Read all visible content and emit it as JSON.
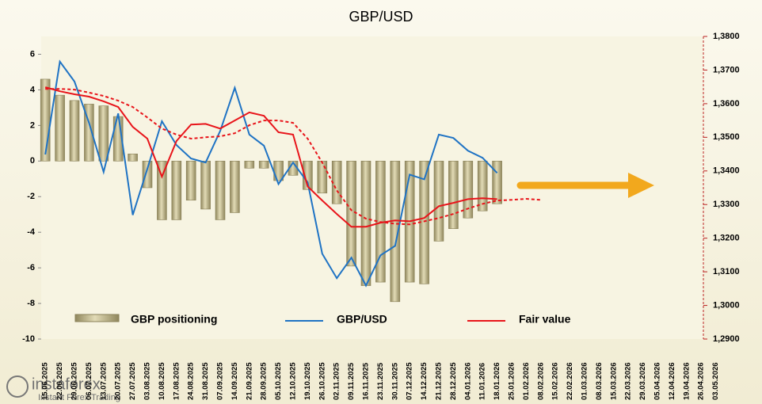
{
  "chart_data": {
    "type": "bar-line",
    "title": "GBP/USD",
    "categories": [
      "15.06.2025",
      "22.06.2025",
      "29.06.2025",
      "06.07.2025",
      "13.07.2025",
      "20.07.2025",
      "27.07.2025",
      "03.08.2025",
      "10.08.2025",
      "17.08.2025",
      "24.08.2025",
      "31.08.2025",
      "07.09.2025",
      "14.09.2025",
      "21.09.2025",
      "28.09.2025",
      "05.10.2025",
      "12.10.2025",
      "19.10.2025",
      "26.10.2025",
      "02.11.2025",
      "09.11.2025",
      "16.11.2025",
      "23.11.2025",
      "30.11.2025",
      "07.12.2025",
      "14.12.2025",
      "21.12.2025",
      "28.12.2025",
      "04.01.2026",
      "11.01.2026",
      "18.01.2026",
      "25.01.2026",
      "01.02.2026",
      "08.02.2026",
      "15.02.2026",
      "22.02.2026",
      "01.03.2026",
      "08.03.2026",
      "15.03.2026",
      "22.03.2026",
      "29.03.2026",
      "05.04.2026",
      "12.04.2026",
      "19.04.2026",
      "26.04.2026",
      "03.05.2026"
    ],
    "series": [
      {
        "name": "GBP positioning",
        "kind": "bar",
        "axis": "y",
        "color": "#c9bf8e",
        "values": [
          4.6,
          3.7,
          3.4,
          3.2,
          3.1,
          2.5,
          0.4,
          -1.5,
          -3.3,
          -3.3,
          -2.2,
          -2.7,
          -3.3,
          -2.9,
          -0.4,
          -0.4,
          -1.1,
          -0.8,
          -1.6,
          -1.8,
          -2.4,
          -5.9,
          -7.0,
          -6.8,
          -7.9,
          -6.8,
          -6.9,
          -4.5,
          -3.8,
          -3.2,
          -2.8,
          -2.4,
          null,
          null,
          null,
          null,
          null,
          null,
          null,
          null,
          null,
          null,
          null,
          null,
          null,
          null,
          null
        ]
      },
      {
        "name": "GBP/USD",
        "kind": "line",
        "axis": "y2",
        "color": "#1f73c4",
        "values": [
          1.3449,
          1.3725,
          1.3666,
          1.3543,
          1.3397,
          1.3571,
          1.3269,
          1.3406,
          1.3548,
          1.3477,
          1.3437,
          1.3425,
          1.3519,
          1.3647,
          1.3508,
          1.3475,
          1.3361,
          1.3425,
          1.3366,
          1.3154,
          1.3081,
          1.3142,
          1.3059,
          1.3149,
          1.3177,
          1.3389,
          1.3375,
          1.3508,
          1.3498,
          1.346,
          1.3439,
          1.3394,
          null,
          null,
          null,
          null,
          null,
          null,
          null,
          null,
          null,
          null,
          null,
          null,
          null,
          null,
          null
        ]
      },
      {
        "name": "Fair value",
        "kind": "line",
        "axis": "y2",
        "color": "#e8141a",
        "values": [
          1.3649,
          1.3637,
          1.3628,
          1.3621,
          1.3607,
          1.359,
          1.3531,
          1.3496,
          1.3383,
          1.3489,
          1.3538,
          1.354,
          1.3526,
          1.355,
          1.3574,
          1.3564,
          1.3515,
          1.3508,
          1.3354,
          1.3312,
          1.3272,
          1.3234,
          1.3234,
          1.3246,
          1.3253,
          1.325,
          1.326,
          1.3295,
          1.3305,
          1.3316,
          1.3319,
          1.3316,
          null,
          null,
          null,
          null,
          null,
          null,
          null,
          null,
          null,
          null,
          null,
          null,
          null,
          null,
          null
        ]
      },
      {
        "kind": "dashed",
        "axis": "y2",
        "color": "#e8141a",
        "values": [
          1.3644,
          1.3644,
          1.3642,
          1.3633,
          1.3623,
          1.3609,
          1.359,
          1.3559,
          1.3526,
          1.3508,
          1.3496,
          1.35,
          1.3503,
          1.3512,
          1.3536,
          1.355,
          1.355,
          1.3543,
          1.3496,
          1.3425,
          1.3342,
          1.3283,
          1.3258,
          1.3248,
          1.3243,
          1.3241,
          1.325,
          1.326,
          1.3272,
          1.3288,
          1.3302,
          1.3312,
          1.3314,
          1.3317,
          1.3314,
          null,
          null,
          null,
          null,
          null,
          null,
          null,
          null,
          null,
          null,
          null,
          null
        ]
      }
    ],
    "ylim": [
      -10,
      7
    ],
    "yticks": [
      -10,
      -8,
      -6,
      -4,
      -2,
      0,
      2,
      4,
      6
    ],
    "y2lim": [
      1.29,
      1.38
    ],
    "y2ticks": [
      {
        "value": 1.29,
        "label": "1,2900"
      },
      {
        "value": 1.3,
        "label": "1,3000"
      },
      {
        "value": 1.31,
        "label": "1,3100"
      },
      {
        "value": 1.32,
        "label": "1,3200"
      },
      {
        "value": 1.33,
        "label": "1,3300"
      },
      {
        "value": 1.34,
        "label": "1,3400"
      },
      {
        "value": 1.35,
        "label": "1,3500"
      },
      {
        "value": 1.36,
        "label": "1,3600"
      },
      {
        "value": 1.37,
        "label": "1,3700"
      },
      {
        "value": 1.38,
        "label": "1,3800"
      }
    ],
    "watermark": {
      "brand": "instaforex",
      "tagline": "Instant Forex Trading"
    }
  }
}
